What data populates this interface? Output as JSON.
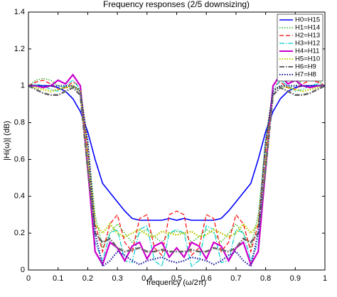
{
  "chart_data": {
    "type": "line",
    "title": "Frequency responses (2/5 downsizing)",
    "xlabel": "frequency (ω/2π)",
    "ylabel": "|Hi(ω)| (dB)",
    "x": [
      0,
      0.025,
      0.05,
      0.075,
      0.1,
      0.125,
      0.15,
      0.175,
      0.2,
      0.225,
      0.25,
      0.275,
      0.3,
      0.325,
      0.35,
      0.375,
      0.4,
      0.425,
      0.45,
      0.475,
      0.5,
      0.525,
      0.55,
      0.575,
      0.6,
      0.625,
      0.65,
      0.675,
      0.7,
      0.725,
      0.75,
      0.775,
      0.8,
      0.825,
      0.85,
      0.875,
      0.9,
      0.925,
      0.95,
      0.975,
      1
    ],
    "xlim": [
      0,
      1
    ],
    "xticks": [
      0,
      0.1,
      0.2,
      0.3,
      0.4,
      0.5,
      0.6,
      0.7,
      0.8,
      0.9,
      1
    ],
    "ylim": [
      0,
      1.4
    ],
    "yticks": [
      0,
      0.2,
      0.4,
      0.6,
      0.8,
      1,
      1.2,
      1.4
    ],
    "legend": "upper right",
    "series": [
      {
        "name": "H0=H15",
        "color": "#0000ff",
        "dash": "solid",
        "linewidth": 1.6,
        "values": [
          1,
          1,
          1,
          1,
          0.99,
          0.97,
          0.93,
          0.86,
          0.75,
          0.6,
          0.47,
          0.42,
          0.37,
          0.32,
          0.28,
          0.27,
          0.27,
          0.27,
          0.27,
          0.28,
          0.27,
          0.28,
          0.27,
          0.27,
          0.27,
          0.27,
          0.28,
          0.32,
          0.37,
          0.42,
          0.47,
          0.6,
          0.75,
          0.86,
          0.93,
          0.97,
          0.99,
          1,
          1,
          1,
          1
        ]
      },
      {
        "name": "H1=H14",
        "color": "#00aa00",
        "dash": "dotted",
        "linewidth": 1.2,
        "values": [
          1,
          1.03,
          1.04,
          1.03,
          1.0,
          0.99,
          1.0,
          0.98,
          0.7,
          0.3,
          0.12,
          0.2,
          0.25,
          0.2,
          0.15,
          0.2,
          0.22,
          0.18,
          0.15,
          0.2,
          0.21,
          0.2,
          0.15,
          0.18,
          0.22,
          0.2,
          0.15,
          0.2,
          0.25,
          0.2,
          0.12,
          0.3,
          0.7,
          0.98,
          1.0,
          0.99,
          1.0,
          1.03,
          1.04,
          1.03,
          1
        ]
      },
      {
        "name": "H2=H13",
        "color": "#ff0000",
        "dash": "dashed",
        "linewidth": 1.2,
        "values": [
          1,
          1.02,
          1.03,
          1.01,
          0.98,
          0.99,
          1.02,
          1.0,
          0.65,
          0.25,
          0.1,
          0.25,
          0.3,
          0.15,
          0.1,
          0.28,
          0.3,
          0.12,
          0.08,
          0.3,
          0.32,
          0.3,
          0.08,
          0.12,
          0.3,
          0.28,
          0.1,
          0.15,
          0.3,
          0.25,
          0.1,
          0.25,
          0.65,
          1.0,
          1.02,
          0.99,
          0.98,
          1.01,
          1.03,
          1.02,
          1
        ]
      },
      {
        "name": "H3=H12",
        "color": "#00cccc",
        "dash": "dashdot",
        "linewidth": 1.2,
        "values": [
          1,
          1.01,
          1.0,
          0.98,
          0.97,
          1.0,
          1.03,
          0.98,
          0.6,
          0.15,
          0.05,
          0.2,
          0.22,
          0.05,
          0.04,
          0.22,
          0.24,
          0.05,
          0.02,
          0.2,
          0.22,
          0.2,
          0.02,
          0.05,
          0.24,
          0.22,
          0.04,
          0.05,
          0.22,
          0.2,
          0.05,
          0.15,
          0.6,
          0.98,
          1.03,
          1.0,
          0.97,
          0.98,
          1.0,
          1.01,
          1
        ]
      },
      {
        "name": "H4=H11",
        "color": "#cc00cc",
        "dash": "solid",
        "linewidth": 2.2,
        "values": [
          1,
          1.0,
          0.99,
          1.0,
          1.03,
          1.01,
          1.06,
          1.0,
          0.55,
          0.1,
          0.03,
          0.15,
          0.12,
          0.05,
          0.13,
          0.15,
          0.06,
          0.13,
          0.15,
          0.07,
          0.12,
          0.07,
          0.15,
          0.13,
          0.06,
          0.15,
          0.13,
          0.05,
          0.12,
          0.15,
          0.03,
          0.1,
          0.55,
          1.0,
          1.06,
          1.01,
          1.03,
          1.0,
          0.99,
          1.0,
          1
        ]
      },
      {
        "name": "H5=H10",
        "color": "#bbcc00",
        "dash": "dotted",
        "linewidth": 2.6,
        "values": [
          1,
          0.99,
          0.98,
          0.97,
          0.98,
          0.99,
          1.0,
          0.97,
          0.6,
          0.25,
          0.2,
          0.25,
          0.2,
          0.18,
          0.2,
          0.22,
          0.19,
          0.18,
          0.21,
          0.2,
          0.19,
          0.2,
          0.21,
          0.18,
          0.19,
          0.22,
          0.2,
          0.18,
          0.2,
          0.25,
          0.2,
          0.25,
          0.6,
          0.97,
          1.0,
          0.99,
          0.98,
          0.97,
          0.98,
          0.99,
          1
        ]
      },
      {
        "name": "H6=H9",
        "color": "#666666",
        "dash": "dashdot",
        "linewidth": 2.6,
        "values": [
          1,
          0.98,
          0.96,
          0.95,
          0.95,
          0.97,
          0.99,
          0.95,
          0.55,
          0.2,
          0.15,
          0.17,
          0.12,
          0.1,
          0.11,
          0.12,
          0.1,
          0.1,
          0.11,
          0.1,
          0.1,
          0.1,
          0.11,
          0.1,
          0.1,
          0.12,
          0.11,
          0.1,
          0.12,
          0.17,
          0.15,
          0.2,
          0.55,
          0.95,
          0.99,
          0.97,
          0.95,
          0.95,
          0.96,
          0.98,
          1
        ]
      },
      {
        "name": "H7=H8",
        "color": "#1a1aa0",
        "dash": "dotted",
        "linewidth": 2.2,
        "values": [
          1,
          1,
          1,
          1,
          1,
          1,
          1,
          0.97,
          0.7,
          0.2,
          0.02,
          0.05,
          0.1,
          0.08,
          0.05,
          0.03,
          0.05,
          0.06,
          0.07,
          0.05,
          0.04,
          0.05,
          0.07,
          0.06,
          0.05,
          0.03,
          0.05,
          0.08,
          0.1,
          0.05,
          0.02,
          0.2,
          0.7,
          0.97,
          1,
          1,
          1,
          1,
          1,
          1,
          1
        ]
      }
    ]
  }
}
